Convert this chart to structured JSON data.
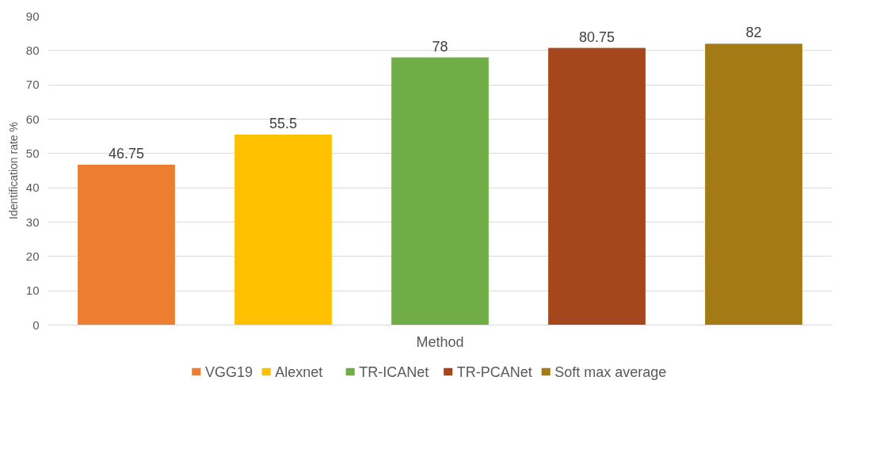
{
  "chart_data": {
    "type": "bar",
    "categories": [
      "Method"
    ],
    "ylabel": "Identification rate %",
    "series": [
      {
        "name": "VGG19",
        "color": "#ed7d31",
        "values": [
          46.75
        ]
      },
      {
        "name": "Alexnet",
        "color": "#ffc000",
        "values": [
          55.5
        ]
      },
      {
        "name": "TR-ICANet",
        "color": "#70ad47",
        "values": [
          78
        ]
      },
      {
        "name": "TR-PCANet",
        "color": "#a5461c",
        "values": [
          80.75
        ]
      },
      {
        "name": "Soft max average",
        "color": "#a47a14",
        "values": [
          82
        ]
      }
    ],
    "ylim": [
      0,
      90
    ],
    "yticks": [
      0,
      10,
      20,
      30,
      40,
      50,
      60,
      70,
      80,
      90
    ],
    "grid": "y",
    "legend": "bottom",
    "data_labels": true
  }
}
